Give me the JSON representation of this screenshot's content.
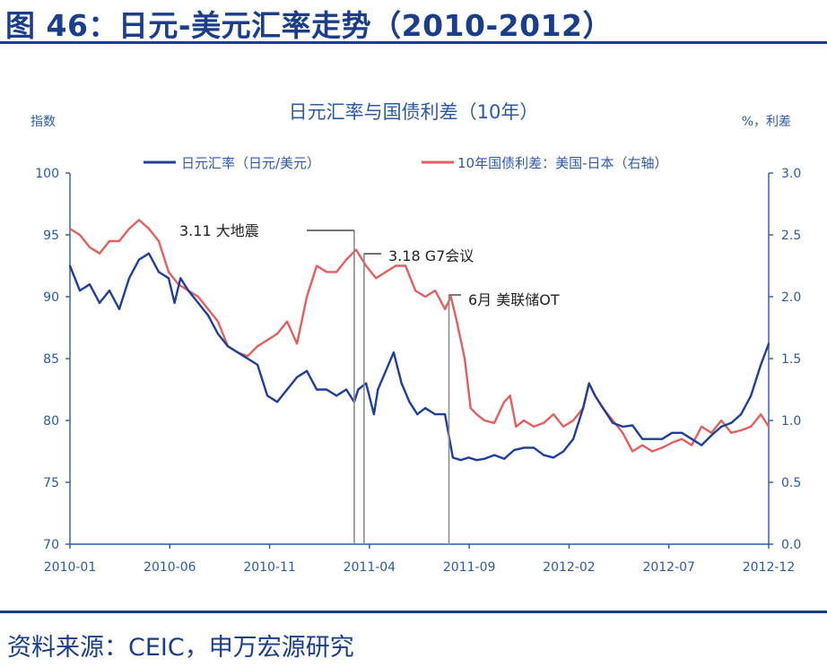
{
  "figure_title": "图 46：日元-美元汇率走势（2010-2012）",
  "source": "资料来源：CEIC，申万宏源研究",
  "colors": {
    "primary": "#1a3e8c",
    "yen": "#1f3f9a",
    "spread": "#e45f5f",
    "axis": "#2c5aa8"
  },
  "chart_data": {
    "type": "line",
    "title": "日元汇率与国债利差（10年）",
    "ylabel": "指数",
    "y2label": "%，利差",
    "ylim": [
      70,
      100
    ],
    "y2lim": [
      0.0,
      3.0
    ],
    "yticks": [
      "100",
      "95",
      "90",
      "85",
      "80",
      "75",
      "70"
    ],
    "y2ticks": [
      "3.0",
      "2.5",
      "2.0",
      "1.5",
      "1.0",
      "0.5",
      "0.0"
    ],
    "xticks": [
      "2010-01",
      "2010-06",
      "2010-11",
      "2011-04",
      "2011-09",
      "2012-02",
      "2012-07",
      "2012-12"
    ],
    "legend_position": "top",
    "series": [
      {
        "name": "日元汇率（日元/美元）",
        "axis": "left",
        "points": [
          [
            0.0,
            92.5
          ],
          [
            0.5,
            90.5
          ],
          [
            1.0,
            91.0
          ],
          [
            1.5,
            89.5
          ],
          [
            2.0,
            90.5
          ],
          [
            2.5,
            89.0
          ],
          [
            3.0,
            91.5
          ],
          [
            3.5,
            93.0
          ],
          [
            4.0,
            93.5
          ],
          [
            4.5,
            92.0
          ],
          [
            5.0,
            91.5
          ],
          [
            5.3,
            89.5
          ],
          [
            5.6,
            91.5
          ],
          [
            6.0,
            90.5
          ],
          [
            6.5,
            89.5
          ],
          [
            7.0,
            88.5
          ],
          [
            7.5,
            87.0
          ],
          [
            8.0,
            86.0
          ],
          [
            8.5,
            85.5
          ],
          [
            9.0,
            85.0
          ],
          [
            9.5,
            84.5
          ],
          [
            10.0,
            82.0
          ],
          [
            10.5,
            81.5
          ],
          [
            11.0,
            82.5
          ],
          [
            11.5,
            83.5
          ],
          [
            12.0,
            84.0
          ],
          [
            12.5,
            82.5
          ],
          [
            13.0,
            82.5
          ],
          [
            13.5,
            82.0
          ],
          [
            14.0,
            82.5
          ],
          [
            14.4,
            81.5
          ],
          [
            14.6,
            82.5
          ],
          [
            15.0,
            83.0
          ],
          [
            15.4,
            80.5
          ],
          [
            15.6,
            82.5
          ],
          [
            16.0,
            84.0
          ],
          [
            16.4,
            85.5
          ],
          [
            16.8,
            83.0
          ],
          [
            17.2,
            81.5
          ],
          [
            17.6,
            80.5
          ],
          [
            18.0,
            81.0
          ],
          [
            18.5,
            80.5
          ],
          [
            19.0,
            80.5
          ],
          [
            19.4,
            77.0
          ],
          [
            19.8,
            76.8
          ],
          [
            20.2,
            77.0
          ],
          [
            20.6,
            76.8
          ],
          [
            21.0,
            76.9
          ],
          [
            21.5,
            77.2
          ],
          [
            22.0,
            76.9
          ],
          [
            22.5,
            77.6
          ],
          [
            23.0,
            77.8
          ],
          [
            23.5,
            77.8
          ],
          [
            24.0,
            77.2
          ],
          [
            24.5,
            77.0
          ],
          [
            25.0,
            77.5
          ],
          [
            25.5,
            78.5
          ],
          [
            26.0,
            81.0
          ],
          [
            26.3,
            83.0
          ],
          [
            26.6,
            82.0
          ],
          [
            27.0,
            81.0
          ],
          [
            27.5,
            79.8
          ],
          [
            28.0,
            79.5
          ],
          [
            28.5,
            79.6
          ],
          [
            29.0,
            78.5
          ],
          [
            29.5,
            78.5
          ],
          [
            30.0,
            78.5
          ],
          [
            30.5,
            79.0
          ],
          [
            31.0,
            79.0
          ],
          [
            31.5,
            78.5
          ],
          [
            32.0,
            78.0
          ],
          [
            32.5,
            78.8
          ],
          [
            33.0,
            79.5
          ],
          [
            33.5,
            79.8
          ],
          [
            34.0,
            80.5
          ],
          [
            34.5,
            82.0
          ],
          [
            34.8,
            83.5
          ],
          [
            35.0,
            84.5
          ],
          [
            35.4,
            86.2
          ]
        ]
      },
      {
        "name": "10年国债利差：美国-日本（右轴）",
        "axis": "right",
        "points": [
          [
            0.0,
            2.55
          ],
          [
            0.5,
            2.5
          ],
          [
            1.0,
            2.4
          ],
          [
            1.5,
            2.35
          ],
          [
            2.0,
            2.45
          ],
          [
            2.5,
            2.45
          ],
          [
            3.0,
            2.55
          ],
          [
            3.5,
            2.62
          ],
          [
            4.0,
            2.55
          ],
          [
            4.5,
            2.45
          ],
          [
            5.0,
            2.2
          ],
          [
            5.5,
            2.1
          ],
          [
            6.0,
            2.05
          ],
          [
            6.5,
            2.0
          ],
          [
            7.0,
            1.9
          ],
          [
            7.5,
            1.8
          ],
          [
            8.0,
            1.6
          ],
          [
            8.5,
            1.55
          ],
          [
            9.0,
            1.52
          ],
          [
            9.5,
            1.6
          ],
          [
            10.0,
            1.65
          ],
          [
            10.5,
            1.7
          ],
          [
            11.0,
            1.8
          ],
          [
            11.5,
            1.62
          ],
          [
            12.0,
            2.0
          ],
          [
            12.5,
            2.25
          ],
          [
            13.0,
            2.2
          ],
          [
            13.5,
            2.2
          ],
          [
            14.0,
            2.3
          ],
          [
            14.5,
            2.38
          ],
          [
            15.0,
            2.25
          ],
          [
            15.5,
            2.15
          ],
          [
            16.0,
            2.2
          ],
          [
            16.5,
            2.25
          ],
          [
            17.0,
            2.25
          ],
          [
            17.5,
            2.05
          ],
          [
            18.0,
            2.0
          ],
          [
            18.5,
            2.05
          ],
          [
            19.0,
            1.9
          ],
          [
            19.3,
            2.0
          ],
          [
            19.6,
            1.8
          ],
          [
            20.0,
            1.5
          ],
          [
            20.3,
            1.1
          ],
          [
            20.6,
            1.05
          ],
          [
            21.0,
            1.0
          ],
          [
            21.5,
            0.98
          ],
          [
            22.0,
            1.15
          ],
          [
            22.3,
            1.2
          ],
          [
            22.6,
            0.95
          ],
          [
            23.0,
            1.0
          ],
          [
            23.5,
            0.95
          ],
          [
            24.0,
            0.98
          ],
          [
            24.5,
            1.05
          ],
          [
            25.0,
            0.95
          ],
          [
            25.5,
            1.0
          ],
          [
            26.0,
            1.1
          ],
          [
            26.3,
            1.3
          ],
          [
            26.6,
            1.2
          ],
          [
            27.0,
            1.1
          ],
          [
            27.5,
            1.0
          ],
          [
            28.0,
            0.9
          ],
          [
            28.5,
            0.75
          ],
          [
            29.0,
            0.8
          ],
          [
            29.5,
            0.75
          ],
          [
            30.0,
            0.78
          ],
          [
            30.5,
            0.82
          ],
          [
            31.0,
            0.85
          ],
          [
            31.5,
            0.8
          ],
          [
            32.0,
            0.95
          ],
          [
            32.5,
            0.9
          ],
          [
            33.0,
            1.0
          ],
          [
            33.5,
            0.9
          ],
          [
            34.0,
            0.92
          ],
          [
            34.5,
            0.95
          ],
          [
            35.0,
            1.05
          ],
          [
            35.4,
            0.95
          ]
        ]
      }
    ],
    "annotations": [
      {
        "label": "3.11 大地震",
        "x": 14.4
      },
      {
        "label": "3.18 G7会议",
        "x": 14.9
      },
      {
        "label": "6月 美联储OT",
        "x": 19.2
      }
    ]
  }
}
